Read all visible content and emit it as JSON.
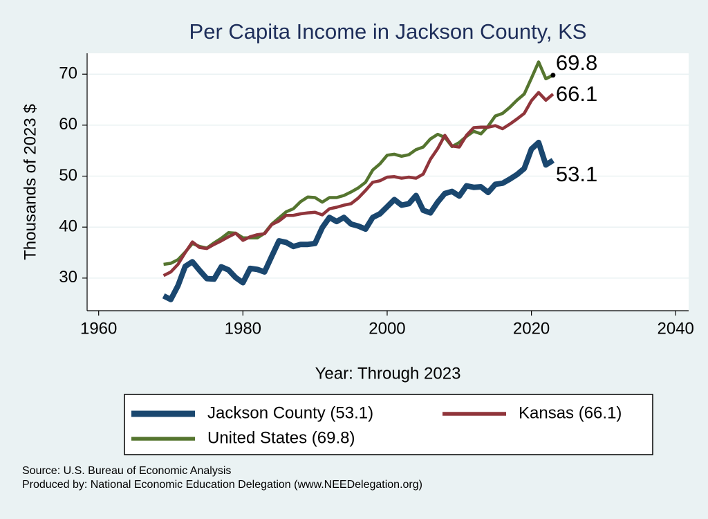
{
  "chart_data": {
    "type": "line",
    "title": "Per Capita Income in Jackson County, KS",
    "x_label": "Year: Through 2023",
    "y_label": "Thousands of 2023 $",
    "x": [
      1969,
      1970,
      1971,
      1972,
      1973,
      1974,
      1975,
      1976,
      1977,
      1978,
      1979,
      1980,
      1981,
      1982,
      1983,
      1984,
      1985,
      1986,
      1987,
      1988,
      1989,
      1990,
      1991,
      1992,
      1993,
      1994,
      1995,
      1996,
      1997,
      1998,
      1999,
      2000,
      2001,
      2002,
      2003,
      2004,
      2005,
      2006,
      2007,
      2008,
      2009,
      2010,
      2011,
      2012,
      2013,
      2014,
      2015,
      2016,
      2017,
      2018,
      2019,
      2020,
      2021,
      2022,
      2023
    ],
    "series": [
      {
        "name": "Jackson County (53.1)",
        "color": "#1a476f",
        "values": [
          26.5,
          25.8,
          28.5,
          32.3,
          33.2,
          31.5,
          29.9,
          29.8,
          32.2,
          31.6,
          30.1,
          29.1,
          31.9,
          31.7,
          31.2,
          34.3,
          37.3,
          37.0,
          36.2,
          36.6,
          36.6,
          36.8,
          39.9,
          41.9,
          41.1,
          41.9,
          40.6,
          40.2,
          39.6,
          41.9,
          42.6,
          44.0,
          45.4,
          44.3,
          44.6,
          46.2,
          43.3,
          42.8,
          44.9,
          46.6,
          47.0,
          46.1,
          48.1,
          47.8,
          47.9,
          46.8,
          48.4,
          48.6,
          49.4,
          50.3,
          51.5,
          55.3,
          56.6,
          52.2,
          53.1
        ]
      },
      {
        "name": "Kansas (66.1)",
        "color": "#90353b",
        "values": [
          30.5,
          31.2,
          32.7,
          35.0,
          37.1,
          36.0,
          35.8,
          36.6,
          37.3,
          38.1,
          38.8,
          37.4,
          38.1,
          38.5,
          38.7,
          40.5,
          41.2,
          42.3,
          42.3,
          42.6,
          42.8,
          42.9,
          42.4,
          43.6,
          43.9,
          44.3,
          44.6,
          45.7,
          47.2,
          48.8,
          49.1,
          49.8,
          49.9,
          49.6,
          49.8,
          49.6,
          50.4,
          53.3,
          55.4,
          58.0,
          55.9,
          55.7,
          58.0,
          59.5,
          59.6,
          59.6,
          59.9,
          59.3,
          60.2,
          61.2,
          62.3,
          64.8,
          66.4,
          64.9,
          66.1
        ]
      },
      {
        "name": "United States (69.8)",
        "color": "#55752f",
        "values": [
          32.7,
          32.9,
          33.6,
          35.1,
          36.8,
          36.2,
          35.9,
          36.9,
          37.8,
          38.9,
          38.8,
          37.9,
          37.9,
          37.9,
          38.8,
          40.6,
          41.8,
          43.0,
          43.6,
          45.0,
          45.9,
          45.8,
          44.9,
          45.8,
          45.8,
          46.2,
          46.9,
          47.7,
          48.8,
          51.2,
          52.4,
          54.1,
          54.3,
          53.9,
          54.2,
          55.2,
          55.7,
          57.3,
          58.2,
          57.6,
          55.8,
          56.6,
          57.8,
          58.8,
          58.3,
          59.8,
          61.8,
          62.3,
          63.5,
          64.9,
          66.1,
          69.2,
          72.4,
          69.1,
          69.8
        ]
      }
    ],
    "xlim": [
      1958.4,
      2041.8
    ],
    "xticks": [
      1960,
      1980,
      2000,
      2020,
      2040
    ],
    "ylim": [
      23.6,
      74.1
    ],
    "yticks": [
      30,
      40,
      50,
      60,
      70
    ],
    "grid": true,
    "source": "Source: U.S. Bureau of Economic Analysis",
    "produced_by": "Produced by: National Economic Education Delegation (www.NEEDelegation.org)"
  }
}
